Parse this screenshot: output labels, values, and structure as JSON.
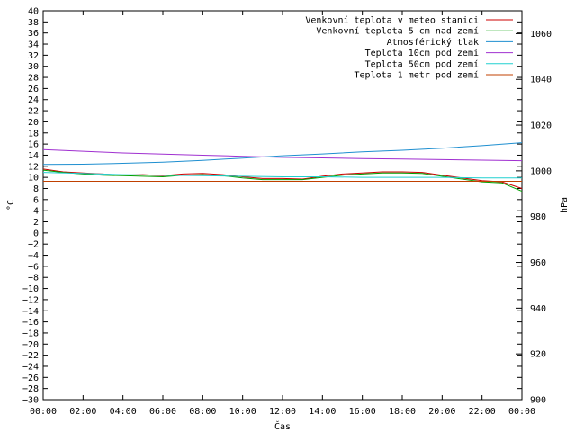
{
  "chart_data": {
    "type": "line",
    "xlabel": "Čas",
    "ylabel_left": "°C",
    "ylabel_right": "hPa",
    "x_ticks": [
      "00:00",
      "02:00",
      "04:00",
      "06:00",
      "08:00",
      "10:00",
      "12:00",
      "14:00",
      "16:00",
      "18:00",
      "20:00",
      "22:00",
      "00:00"
    ],
    "x_range_hours": [
      0,
      24
    ],
    "ylim_left": [
      -30,
      40
    ],
    "ylim_right": [
      900,
      1070
    ],
    "y_ticks_left": [
      40,
      38,
      36,
      34,
      32,
      30,
      28,
      26,
      24,
      22,
      20,
      18,
      16,
      14,
      12,
      10,
      8,
      6,
      4,
      2,
      0,
      -2,
      -4,
      -6,
      -8,
      -10,
      -12,
      -14,
      -16,
      -18,
      -20,
      -22,
      -24,
      -26,
      -28,
      -30
    ],
    "y_ticks_right": [
      1060,
      1040,
      1020,
      1000,
      980,
      960,
      940,
      920,
      900
    ],
    "legend_position": "top-right",
    "series": [
      {
        "name": "Venkovní teplota v meteo stanici",
        "axis": "left",
        "color": "#cc0000",
        "x": [
          0,
          1,
          2,
          3,
          4,
          5,
          6,
          7,
          8,
          9,
          10,
          11,
          12,
          13,
          14,
          15,
          16,
          17,
          18,
          19,
          20,
          21,
          22,
          23,
          24
        ],
        "values": [
          11.5,
          11.0,
          10.8,
          10.6,
          10.4,
          10.5,
          10.3,
          10.6,
          10.7,
          10.5,
          10.1,
          9.8,
          9.8,
          9.7,
          10.2,
          10.6,
          10.8,
          11.0,
          11.0,
          10.9,
          10.4,
          9.9,
          9.4,
          9.2,
          8.0
        ]
      },
      {
        "name": "Venkovní teplota 5 cm nad zemí",
        "axis": "left",
        "color": "#00a000",
        "x": [
          0,
          1,
          2,
          3,
          4,
          5,
          6,
          7,
          8,
          9,
          10,
          11,
          12,
          13,
          14,
          15,
          16,
          17,
          18,
          19,
          20,
          21,
          22,
          23,
          24
        ],
        "values": [
          11.3,
          10.9,
          10.6,
          10.4,
          10.3,
          10.2,
          10.1,
          10.4,
          10.5,
          10.3,
          9.9,
          9.6,
          9.6,
          9.6,
          10.0,
          10.4,
          10.6,
          10.8,
          10.8,
          10.7,
          10.2,
          9.7,
          9.2,
          9.0,
          7.5
        ]
      },
      {
        "name": "Atmosférický tlak",
        "axis": "right",
        "color": "#1f8fd0",
        "x": [
          0,
          2,
          4,
          6,
          8,
          10,
          12,
          14,
          16,
          18,
          20,
          22,
          24
        ],
        "values": [
          1002.8,
          1002.9,
          1003.3,
          1003.8,
          1004.6,
          1005.6,
          1006.6,
          1007.4,
          1008.3,
          1009.0,
          1009.9,
          1011.0,
          1012.3
        ]
      },
      {
        "name": "Teplota 10cm pod zemí",
        "axis": "left",
        "color": "#a030d0",
        "x": [
          0,
          2,
          4,
          6,
          8,
          10,
          12,
          14,
          16,
          18,
          20,
          22,
          24
        ],
        "values": [
          15.0,
          14.7,
          14.4,
          14.2,
          14.0,
          13.8,
          13.6,
          13.5,
          13.4,
          13.3,
          13.2,
          13.1,
          13.0
        ]
      },
      {
        "name": "Teplota 50cm pod zemí",
        "axis": "left",
        "color": "#20d0d0",
        "x": [
          0,
          2,
          4,
          6,
          8,
          10,
          12,
          14,
          16,
          18,
          20,
          22,
          24
        ],
        "values": [
          10.9,
          10.7,
          10.5,
          10.4,
          10.3,
          10.2,
          10.1,
          10.1,
          10.0,
          10.0,
          10.0,
          9.9,
          9.9
        ]
      },
      {
        "name": "Teplota 1 metr pod zemí",
        "axis": "left",
        "color": "#c04000",
        "x": [
          0,
          2,
          4,
          6,
          8,
          10,
          12,
          14,
          16,
          18,
          20,
          22,
          24
        ],
        "values": [
          9.3,
          9.3,
          9.3,
          9.3,
          9.3,
          9.3,
          9.3,
          9.3,
          9.3,
          9.3,
          9.3,
          9.3,
          9.3
        ]
      }
    ]
  }
}
